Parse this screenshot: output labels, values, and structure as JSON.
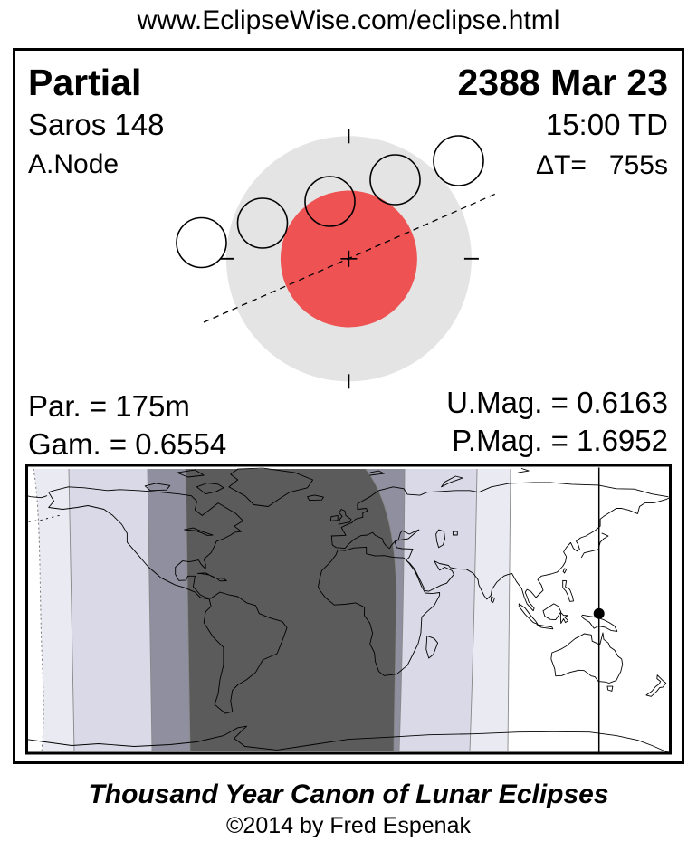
{
  "header": {
    "url": "www.EclipseWise.com/eclipse.html"
  },
  "eclipse": {
    "type": "Partial",
    "date": "2388 Mar 23",
    "saros": "Saros 148",
    "time": "15:00 TD",
    "node": "A.Node",
    "delta_t": "ΔT=   755s",
    "stats": {
      "par": "Par. = 175m",
      "gam": "Gam. = 0.6554",
      "umag": "U.Mag. = 0.6163",
      "pmag": "P.Mag. = 1.6952"
    }
  },
  "diagram": {
    "penumbra_color": "#e4e4e4",
    "umbra_color": "#ee5252",
    "moon_contacts": 5
  },
  "map": {
    "zone_colors": {
      "light1": "#eaeaf2",
      "light2": "#d9d9e8",
      "mid": "#8f8f9f",
      "dark": "#5b5b5b",
      "none": "#ffffff"
    },
    "marker_color": "#000000"
  },
  "footer": {
    "title": "Thousand Year Canon of Lunar Eclipses",
    "copyright": "©2014 by Fred Espenak"
  }
}
